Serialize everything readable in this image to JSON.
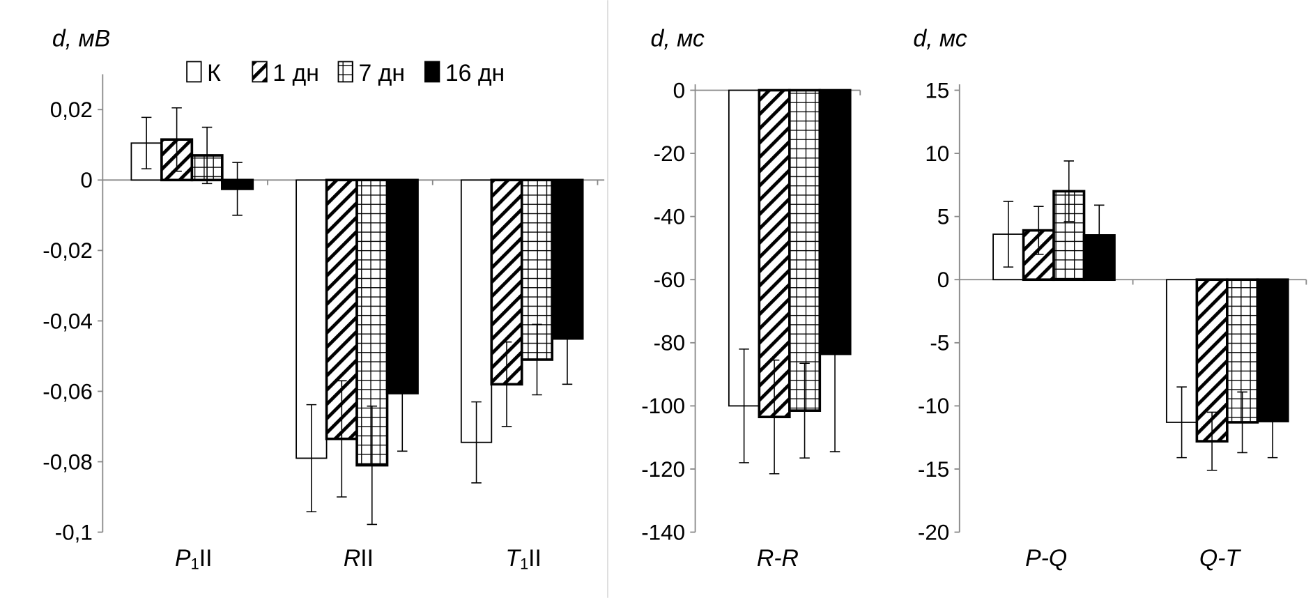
{
  "chart_data": [
    {
      "type": "bar",
      "ylabel": "d, мВ",
      "ylim": [
        -0.1,
        0.02
      ],
      "yticks": [
        "0,02",
        "0",
        "-0,02",
        "-0,04",
        "-0,06",
        "-0,08",
        "-0,1"
      ],
      "ytick_values": [
        0.02,
        0,
        -0.02,
        -0.04,
        -0.06,
        -0.08,
        -0.1
      ],
      "categories": [
        {
          "main": "P",
          "sub": "1",
          "rest": "II"
        },
        {
          "main": "R",
          "sub": "",
          "rest": "II"
        },
        {
          "main": "T",
          "sub": "1",
          "rest": "II"
        }
      ],
      "series": [
        {
          "name": "К",
          "values": [
            0.0105,
            -0.079,
            -0.0745
          ],
          "errors": [
            0.0073,
            0.0152,
            0.0115
          ]
        },
        {
          "name": "1 дн",
          "values": [
            0.0115,
            -0.0735,
            -0.058
          ],
          "errors": [
            0.009,
            0.0165,
            0.012
          ]
        },
        {
          "name": "7 дн",
          "values": [
            0.007,
            -0.081,
            -0.051
          ],
          "errors": [
            0.008,
            0.0168,
            0.01
          ]
        },
        {
          "name": "16 дн",
          "values": [
            -0.0025,
            -0.0605,
            -0.045
          ],
          "errors": [
            0.0075,
            0.0165,
            0.013
          ]
        }
      ]
    },
    {
      "type": "bar",
      "ylabel": "d, мс",
      "ylim": [
        -140,
        0
      ],
      "yticks": [
        "0",
        "-20",
        "-40",
        "-60",
        "-80",
        "-100",
        "-120",
        "-140"
      ],
      "ytick_values": [
        0,
        -20,
        -40,
        -60,
        -80,
        -100,
        -120,
        -140
      ],
      "categories": [
        {
          "main": "R-R",
          "sub": "",
          "rest": ""
        }
      ],
      "series": [
        {
          "name": "К",
          "values": [
            -100
          ],
          "errors": [
            18
          ]
        },
        {
          "name": "1 дн",
          "values": [
            -103.5
          ],
          "errors": [
            18
          ]
        },
        {
          "name": "7 дн",
          "values": [
            -101.5
          ],
          "errors": [
            15
          ]
        },
        {
          "name": "16 дн",
          "values": [
            -83.5
          ],
          "errors": [
            31
          ]
        }
      ]
    },
    {
      "type": "bar",
      "ylabel": "d, мс",
      "ylim": [
        -20,
        15
      ],
      "yticks": [
        "15",
        "10",
        "5",
        "0",
        "-5",
        "-10",
        "-15",
        "-20"
      ],
      "ytick_values": [
        15,
        10,
        5,
        0,
        -5,
        -10,
        -15,
        -20
      ],
      "categories": [
        {
          "main": "P-Q",
          "sub": "",
          "rest": ""
        },
        {
          "main": "Q-T",
          "sub": "",
          "rest": ""
        }
      ],
      "series": [
        {
          "name": "К",
          "values": [
            3.6,
            -11.3
          ],
          "errors": [
            2.6,
            2.8
          ]
        },
        {
          "name": "1 дн",
          "values": [
            3.9,
            -12.8
          ],
          "errors": [
            1.9,
            2.3
          ]
        },
        {
          "name": "7 дн",
          "values": [
            7.0,
            -11.3
          ],
          "errors": [
            2.4,
            2.4
          ]
        },
        {
          "name": "16 дн",
          "values": [
            3.5,
            -11.2
          ],
          "errors": [
            2.4,
            2.9
          ]
        }
      ]
    }
  ],
  "legend": [
    "К",
    "1 дн",
    "7 дн",
    "16 дн"
  ],
  "legend_placement": "top",
  "colors": {
    "axis": "#888888",
    "bar_outline": "#000000",
    "fill_16": "#000000"
  }
}
